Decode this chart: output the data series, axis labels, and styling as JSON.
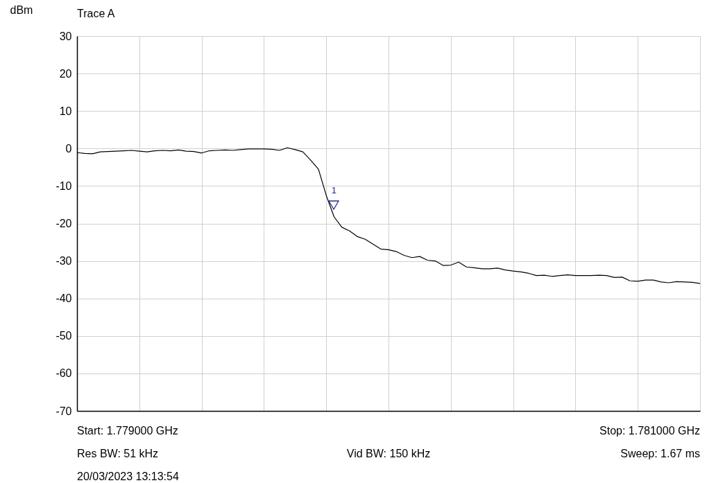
{
  "chart_data": {
    "type": "line",
    "title": "Trace A",
    "ylabel": "dBm",
    "categories": [
      null,
      null,
      null,
      null,
      null,
      null,
      null,
      null,
      null,
      null,
      null,
      null,
      null,
      null,
      null,
      null,
      null,
      null,
      null,
      null,
      null,
      null,
      null,
      null,
      null,
      null,
      null,
      null,
      null,
      null,
      null,
      null,
      null,
      null,
      null,
      null,
      null,
      null,
      null,
      null,
      null,
      null,
      null,
      null,
      null,
      null,
      null,
      null,
      null,
      null,
      null,
      null,
      null,
      null,
      null,
      null,
      null,
      null,
      null,
      null,
      null,
      null,
      null,
      null,
      null,
      null,
      null,
      null,
      null,
      null,
      null,
      null,
      null,
      null,
      null,
      null,
      null,
      null,
      null,
      null,
      null
    ],
    "series": [
      {
        "color": "#000000",
        "values": [
          -1.1,
          -1.3,
          -1.4,
          -0.9,
          -0.8,
          -0.7,
          -0.6,
          -0.5,
          -0.7,
          -0.9,
          -0.6,
          -0.5,
          -0.6,
          -0.4,
          -0.7,
          -0.8,
          -1.2,
          -0.6,
          -0.5,
          -0.4,
          -0.5,
          -0.3,
          -0.1,
          -0.1,
          -0.1,
          -0.2,
          -0.5,
          0.2,
          -0.3,
          -0.9,
          -3.1,
          -5.5,
          -12.5,
          -18.2,
          -21,
          -22,
          -23.5,
          -24.2,
          -25.5,
          -26.8,
          -27,
          -27.5,
          -28.5,
          -29.1,
          -28.8,
          -29.8,
          -30,
          -31.2,
          -31.1,
          -30.3,
          -31.6,
          -31.8,
          -32.1,
          -32.1,
          -31.9,
          -32.4,
          -32.7,
          -32.9,
          -33.3,
          -33.9,
          -33.8,
          -34.1,
          -33.9,
          -33.7,
          -33.9,
          -33.9,
          -33.9,
          -33.8,
          -33.9,
          -34.4,
          -34.3,
          -35.3,
          -35.4,
          -35.1,
          -35.1,
          -35.6,
          -35.8,
          -35.5,
          -35.6,
          -35.7,
          -36
        ]
      }
    ],
    "ylim": [
      -70,
      30
    ],
    "yticks": [
      -70,
      -60,
      -50,
      -40,
      -30,
      -20,
      -10,
      0,
      10,
      20,
      30
    ],
    "grid": true,
    "tick_labels": "y",
    "annotations": [
      {
        "text": "1",
        "y": -16
      },
      "Start: 1.779000 GHz",
      "Stop: 1.781000 GHz",
      "Res BW: 51 kHz",
      "Vid BW: 150 kHz",
      "Sweep: 1.67 ms",
      "20/03/2023 13:13:54"
    ]
  }
}
